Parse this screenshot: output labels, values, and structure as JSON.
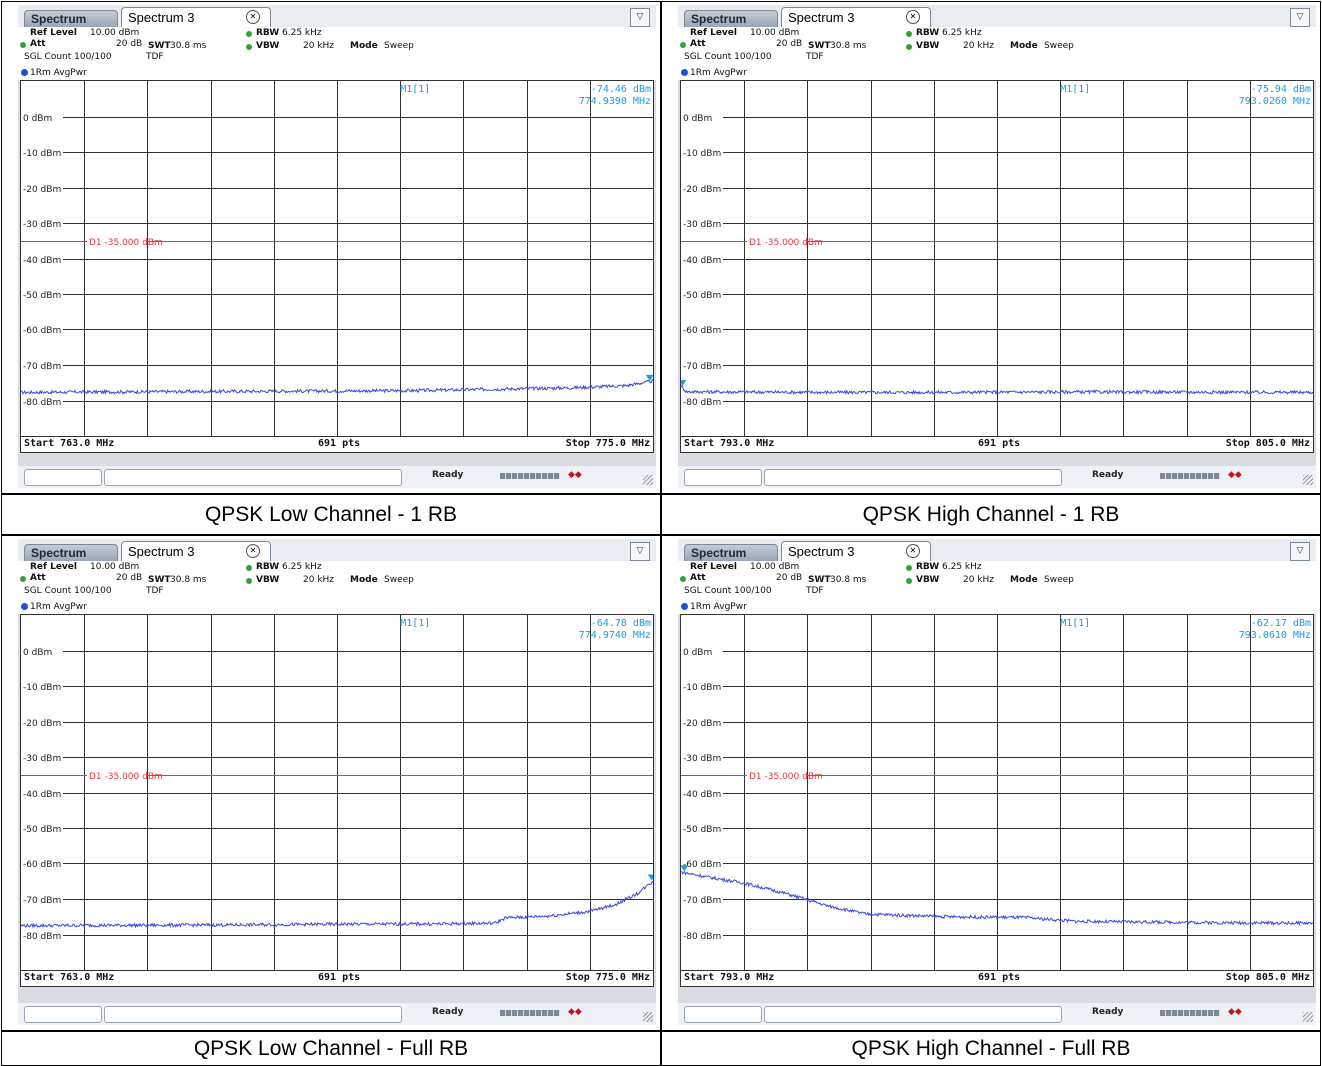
{
  "panels": [
    {
      "tab_inactive": "Spectrum",
      "tab_active": "Spectrum 3",
      "ref_level_label": "Ref Level",
      "ref_level_value": "10.00 dBm",
      "att_label": "Att",
      "att_value": "20 dB",
      "swt_label": "SWT",
      "swt_value": "30.8 ms",
      "rbw_label": "RBW",
      "rbw_value": "6.25 kHz",
      "vbw_label": "VBW",
      "vbw_value": "20 kHz",
      "mode_label": "Mode",
      "mode_value": "Sweep",
      "sgl_count": "SGL Count 100/100",
      "tdf": "TDF",
      "trace_label": "1Rm AvgPwr",
      "marker_label": "M1[1]",
      "marker_level": "-74.46 dBm",
      "marker_freq": "774.9390 MHz",
      "limit_label": "D1 -35.000 dBm",
      "start": "Start 763.0 MHz",
      "points": "691 pts",
      "stop": "Stop 775.0 MHz",
      "status": "Ready",
      "caption": "QPSK Low Channel - 1 RB"
    },
    {
      "tab_inactive": "Spectrum",
      "tab_active": "Spectrum 3",
      "ref_level_label": "Ref Level",
      "ref_level_value": "10.00 dBm",
      "att_label": "Att",
      "att_value": "20 dB",
      "swt_label": "SWT",
      "swt_value": "30.8 ms",
      "rbw_label": "RBW",
      "rbw_value": "6.25 kHz",
      "vbw_label": "VBW",
      "vbw_value": "20 kHz",
      "mode_label": "Mode",
      "mode_value": "Sweep",
      "sgl_count": "SGL Count 100/100",
      "tdf": "TDF",
      "trace_label": "1Rm AvgPwr",
      "marker_label": "M1[1]",
      "marker_level": "-75.94 dBm",
      "marker_freq": "793.0260 MHz",
      "limit_label": "D1 -35.000 dBm",
      "start": "Start 793.0 MHz",
      "points": "691 pts",
      "stop": "Stop 805.0 MHz",
      "status": "Ready",
      "caption": "QPSK High Channel - 1 RB"
    },
    {
      "tab_inactive": "Spectrum",
      "tab_active": "Spectrum 3",
      "ref_level_label": "Ref Level",
      "ref_level_value": "10.00 dBm",
      "att_label": "Att",
      "att_value": "20 dB",
      "swt_label": "SWT",
      "swt_value": "30.8 ms",
      "rbw_label": "RBW",
      "rbw_value": "6.25 kHz",
      "vbw_label": "VBW",
      "vbw_value": "20 kHz",
      "mode_label": "Mode",
      "mode_value": "Sweep",
      "sgl_count": "SGL Count 100/100",
      "tdf": "TDF",
      "trace_label": "1Rm AvgPwr",
      "marker_label": "M1[1]",
      "marker_level": "-64.78 dBm",
      "marker_freq": "774.9740 MHz",
      "limit_label": "D1 -35.000 dBm",
      "start": "Start 763.0 MHz",
      "points": "691 pts",
      "stop": "Stop 775.0 MHz",
      "status": "Ready",
      "caption": "QPSK Low Channel - Full RB"
    },
    {
      "tab_inactive": "Spectrum",
      "tab_active": "Spectrum 3",
      "ref_level_label": "Ref Level",
      "ref_level_value": "10.00 dBm",
      "att_label": "Att",
      "att_value": "20 dB",
      "swt_label": "SWT",
      "swt_value": "30.8 ms",
      "rbw_label": "RBW",
      "rbw_value": "6.25 kHz",
      "vbw_label": "VBW",
      "vbw_value": "20 kHz",
      "mode_label": "Mode",
      "mode_value": "Sweep",
      "sgl_count": "SGL Count 100/100",
      "tdf": "TDF",
      "trace_label": "1Rm AvgPwr",
      "marker_label": "M1[1]",
      "marker_level": "-62.17 dBm",
      "marker_freq": "793.0610 MHz",
      "limit_label": "D1 -35.000 dBm",
      "start": "Start 793.0 MHz",
      "points": "691 pts",
      "stop": "Stop 805.0 MHz",
      "status": "Ready",
      "caption": "QPSK High Channel - Full RB"
    }
  ],
  "y_tick_labels": [
    "0 dBm",
    "-10 dBm",
    "-20 dBm",
    "-30 dBm",
    "-40 dBm",
    "-50 dBm",
    "-60 dBm",
    "-70 dBm",
    "-80 dBm"
  ],
  "colors": {
    "limit_line": "#e8353a",
    "trace": "#3a4bd8",
    "marker_text": "#1a9ee0",
    "grid": "#333333"
  },
  "chart_data": [
    {
      "type": "line",
      "title": "",
      "xlabel": "",
      "ylabel": "",
      "xlim": [
        763.0,
        775.0
      ],
      "ylim": [
        -90,
        10
      ],
      "limit_line_dbm": -35.0,
      "series": [
        {
          "x": [
            763.0,
            764.5,
            766.0,
            767.5,
            769.0,
            770.5,
            772.0,
            773.5,
            774.5,
            775.0
          ],
          "values": [
            -77.7,
            -77.6,
            -77.5,
            -77.4,
            -77.3,
            -77.2,
            -76.8,
            -76.4,
            -75.8,
            -74.5
          ]
        }
      ],
      "marker": {
        "x": 774.939,
        "y": -74.46
      }
    },
    {
      "type": "line",
      "title": "",
      "xlabel": "",
      "ylabel": "",
      "xlim": [
        793.0,
        805.0
      ],
      "ylim": [
        -90,
        10
      ],
      "limit_line_dbm": -35.0,
      "series": [
        {
          "x": [
            793.0,
            793.1,
            794.0,
            796.0,
            798.0,
            800.0,
            802.0,
            804.0,
            805.0
          ],
          "values": [
            -75.9,
            -77.5,
            -77.6,
            -77.7,
            -77.7,
            -77.6,
            -77.6,
            -77.7,
            -77.7
          ]
        }
      ],
      "marker": {
        "x": 793.026,
        "y": -75.94
      }
    },
    {
      "type": "line",
      "title": "",
      "xlabel": "",
      "ylabel": "",
      "xlim": [
        763.0,
        775.0
      ],
      "ylim": [
        -90,
        10
      ],
      "limit_line_dbm": -35.0,
      "series": [
        {
          "x": [
            763.0,
            765.0,
            767.0,
            769.0,
            771.0,
            772.0,
            772.2,
            773.0,
            773.8,
            774.3,
            774.7,
            775.0
          ],
          "values": [
            -77.5,
            -77.4,
            -77.3,
            -77.1,
            -77.0,
            -76.8,
            -75.3,
            -74.8,
            -73.5,
            -71.5,
            -68.5,
            -65.0
          ]
        }
      ],
      "marker": {
        "x": 774.974,
        "y": -64.78
      }
    },
    {
      "type": "line",
      "title": "",
      "xlabel": "",
      "ylabel": "",
      "xlim": [
        793.0,
        805.0
      ],
      "ylim": [
        -90,
        10
      ],
      "limit_line_dbm": -35.0,
      "series": [
        {
          "x": [
            793.0,
            793.5,
            794.2,
            795.0,
            795.8,
            796.5,
            798.0,
            799.5,
            800.5,
            802.0,
            803.5,
            805.0
          ],
          "values": [
            -62.4,
            -63.8,
            -65.5,
            -68.5,
            -72.0,
            -74.2,
            -75.0,
            -75.2,
            -76.3,
            -76.5,
            -76.7,
            -76.8
          ]
        }
      ],
      "marker": {
        "x": 793.061,
        "y": -62.17
      }
    }
  ]
}
